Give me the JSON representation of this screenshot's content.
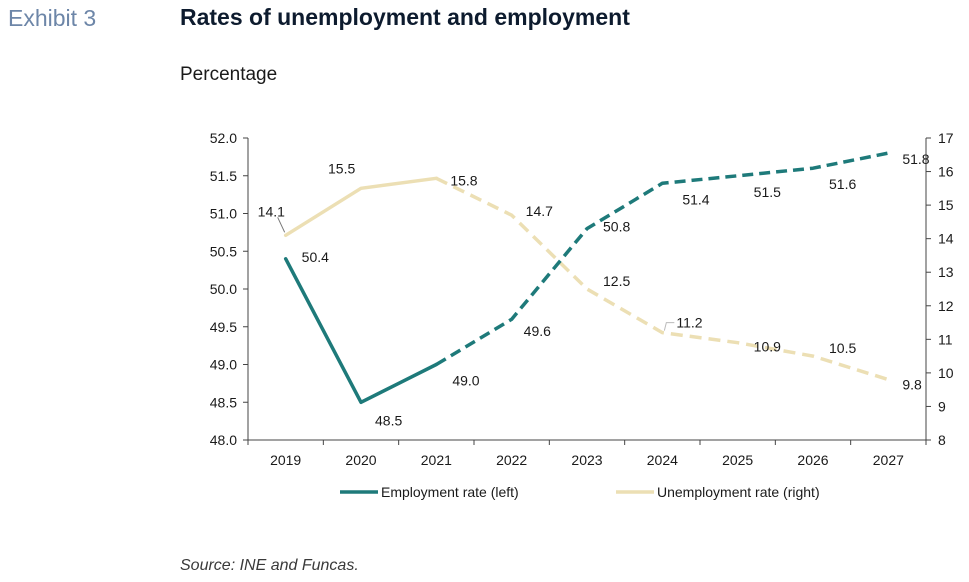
{
  "header": {
    "exhibit": "Exhibit 3",
    "title": "Rates of unemployment and employment",
    "subtitle": "Percentage"
  },
  "footer": {
    "source": "Source: INE and Funcas."
  },
  "colors": {
    "employment": "#1e7a7a",
    "unemployment": "#ecdfb4",
    "axis": "#444444"
  },
  "chart_data": {
    "type": "line",
    "title": "Rates of unemployment and employment",
    "categories": [
      "2019",
      "2020",
      "2021",
      "2022",
      "2023",
      "2024",
      "2025",
      "2026",
      "2027"
    ],
    "yleft": {
      "lim": [
        48.0,
        52.0
      ],
      "ticks": [
        "48.0",
        "48.5",
        "49.0",
        "49.5",
        "50.0",
        "50.5",
        "51.0",
        "51.5",
        "52.0"
      ]
    },
    "yright": {
      "lim": [
        8,
        17
      ],
      "ticks": [
        "8",
        "9",
        "10",
        "11",
        "12",
        "13",
        "14",
        "15",
        "16",
        "17"
      ]
    },
    "series": [
      {
        "name": "Employment rate (left)",
        "axis": "left",
        "values": [
          50.4,
          48.5,
          49.0,
          49.6,
          50.8,
          51.4,
          51.5,
          51.6,
          51.8
        ],
        "labels": [
          "50.4",
          "48.5",
          "49.0",
          "49.6",
          "50.8",
          "51.4",
          "51.5",
          "51.6",
          "51.8"
        ],
        "solid_through_index": 2
      },
      {
        "name": "Unemployment rate (right)",
        "axis": "right",
        "values": [
          14.1,
          15.5,
          15.8,
          14.7,
          12.5,
          11.2,
          10.9,
          10.5,
          9.8
        ],
        "labels": [
          "14.1",
          "15.5",
          "15.8",
          "14.7",
          "12.5",
          "11.2",
          "10.9",
          "10.5",
          "9.8"
        ],
        "solid_through_index": 2
      }
    ],
    "grid": false,
    "legend": "bottom"
  }
}
